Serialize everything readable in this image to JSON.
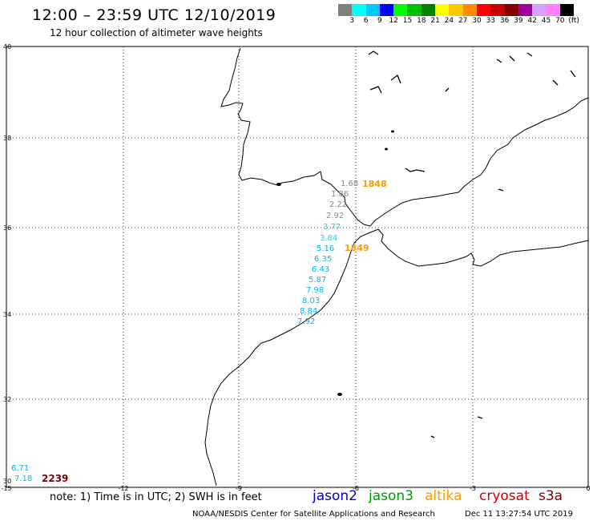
{
  "header": {
    "title": "12:00 – 23:59 UTC 12/10/2019",
    "subtitle": "12 hour collection of altimeter wave heights"
  },
  "color_scale": {
    "labels": [
      "3",
      "6",
      "9",
      "12",
      "15",
      "18",
      "21",
      "24",
      "27",
      "30",
      "33",
      "36",
      "39",
      "42",
      "45",
      "70",
      "(ft)"
    ],
    "colors": [
      "#7f7f7f",
      "#00ffff",
      "#00c8ff",
      "#0000ff",
      "#00ff00",
      "#00c000",
      "#008000",
      "#ffff00",
      "#ffc800",
      "#ff8c00",
      "#ff0000",
      "#c80000",
      "#800000",
      "#a000a0",
      "#d8a0ff",
      "#ff80ff",
      "#000000"
    ]
  },
  "map": {
    "lat_labels": [
      "40",
      "38",
      "36",
      "34",
      "32",
      "30"
    ],
    "lon_labels": [
      "-15",
      "-12",
      "-9",
      "-6",
      "-3",
      "0"
    ],
    "track_points": [
      {
        "value": "1.68",
        "color": "#888888"
      },
      {
        "value": "1.86",
        "color": "#888888"
      },
      {
        "value": "2.22",
        "color": "#888888"
      },
      {
        "value": "2.92",
        "color": "#888888"
      },
      {
        "value": "3.77",
        "color": "#00e0ff"
      },
      {
        "value": "3.84",
        "color": "#00e0ff"
      },
      {
        "value": "5.16",
        "color": "#00b8f0"
      },
      {
        "value": "6.35",
        "color": "#00b8f0"
      },
      {
        "value": "6.43",
        "color": "#00b8f0"
      },
      {
        "value": "5.87",
        "color": "#00b8f0"
      },
      {
        "value": "7.98",
        "color": "#00b8f0"
      },
      {
        "value": "8.03",
        "color": "#00b8f0"
      },
      {
        "value": "8.84",
        "color": "#00b8f0"
      },
      {
        "value": "7.92",
        "color": "#00b8f0"
      }
    ],
    "pass_labels": [
      {
        "text": "1848",
        "color": "#ff9900"
      },
      {
        "text": "1849",
        "color": "#ff9900"
      }
    ],
    "corner_values": [
      {
        "text": "6.71",
        "color": "#00b8f0"
      },
      {
        "text": "7.18",
        "color": "#00b8f0"
      }
    ],
    "corner_pass": {
      "text": "2239",
      "color": "#800000"
    }
  },
  "footer": {
    "note": "note:  1) Time is in UTC;  2) SWH is in feet",
    "missions": [
      {
        "name": "jason2",
        "color": "#0000cc"
      },
      {
        "name": "jason3",
        "color": "#009900"
      },
      {
        "name": "altika",
        "color": "#ff9900"
      },
      {
        "name": "cryosat",
        "color": "#cc0000"
      },
      {
        "name": "s3a",
        "color": "#800000"
      }
    ],
    "credit": "NOAA/NESDIS Center for Satellite Applications and Research",
    "timestamp": "Dec 11 13:27:54 UTC 2019"
  }
}
